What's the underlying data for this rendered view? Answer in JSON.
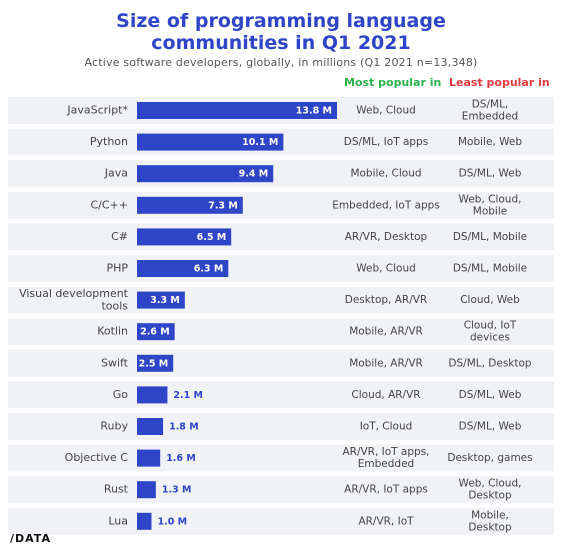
{
  "header": {
    "title_line1": "Size of programming language",
    "title_line2": "communities in Q1 2021",
    "subtitle": "Active software developers, globally, in millions (Q1 2021 n=13,348)",
    "col_most": "Most popular in",
    "col_least": "Least popular in"
  },
  "colors": {
    "bar": "#2f45c8",
    "title": "#2f45c8",
    "most": "#2bb24c",
    "least": "#e0393e",
    "band": "#f1f2f6"
  },
  "logo": "/DATA",
  "chart_data": {
    "type": "bar",
    "orientation": "horizontal",
    "title": "Size of programming language communities in Q1 2021",
    "subtitle": "Active software developers, globally, in millions (Q1 2021 n=13,348)",
    "unit": "M",
    "categories": [
      "JavaScript*",
      "Python",
      "Java",
      "C/C++",
      "C#",
      "PHP",
      "Visual development tools",
      "Kotlin",
      "Swift",
      "Go",
      "Ruby",
      "Objective C",
      "Rust",
      "Lua"
    ],
    "values": [
      13.8,
      10.1,
      9.4,
      7.3,
      6.5,
      6.3,
      3.3,
      2.6,
      2.5,
      2.1,
      1.8,
      1.6,
      1.3,
      1.0
    ],
    "value_labels": [
      "13.8 M",
      "10.1 M",
      "9.4 M",
      "7.3 M",
      "6.5 M",
      "6.3 M",
      "3.3 M",
      "2.6 M",
      "2.5 M",
      "2.1 M",
      "1.8 M",
      "1.6 M",
      "1.3 M",
      "1.0 M"
    ],
    "most_popular_in": [
      "Web, Cloud",
      "DS/ML, IoT apps",
      "Mobile, Cloud",
      "Embedded, IoT apps",
      "AR/VR, Desktop",
      "Web, Cloud",
      "Desktop, AR/VR",
      "Mobile, AR/VR",
      "Mobile, AR/VR",
      "Cloud, AR/VR",
      "IoT, Cloud",
      "AR/VR, IoT apps, Embedded",
      "AR/VR, IoT apps",
      "AR/VR, IoT"
    ],
    "least_popular_in": [
      "DS/ML, Embedded",
      "Mobile, Web",
      "DS/ML, Web",
      "Web, Cloud, Mobile",
      "DS/ML, Mobile",
      "DS/ML, Mobile",
      "Cloud, Web",
      "Cloud, IoT devices",
      "DS/ML, Desktop",
      "DS/ML, Web",
      "DS/ML, Web",
      "Desktop, games",
      "Web, Cloud, Desktop",
      "Mobile, Desktop"
    ],
    "xlim": [
      0,
      13.8
    ],
    "grid": false,
    "legend": "none"
  }
}
